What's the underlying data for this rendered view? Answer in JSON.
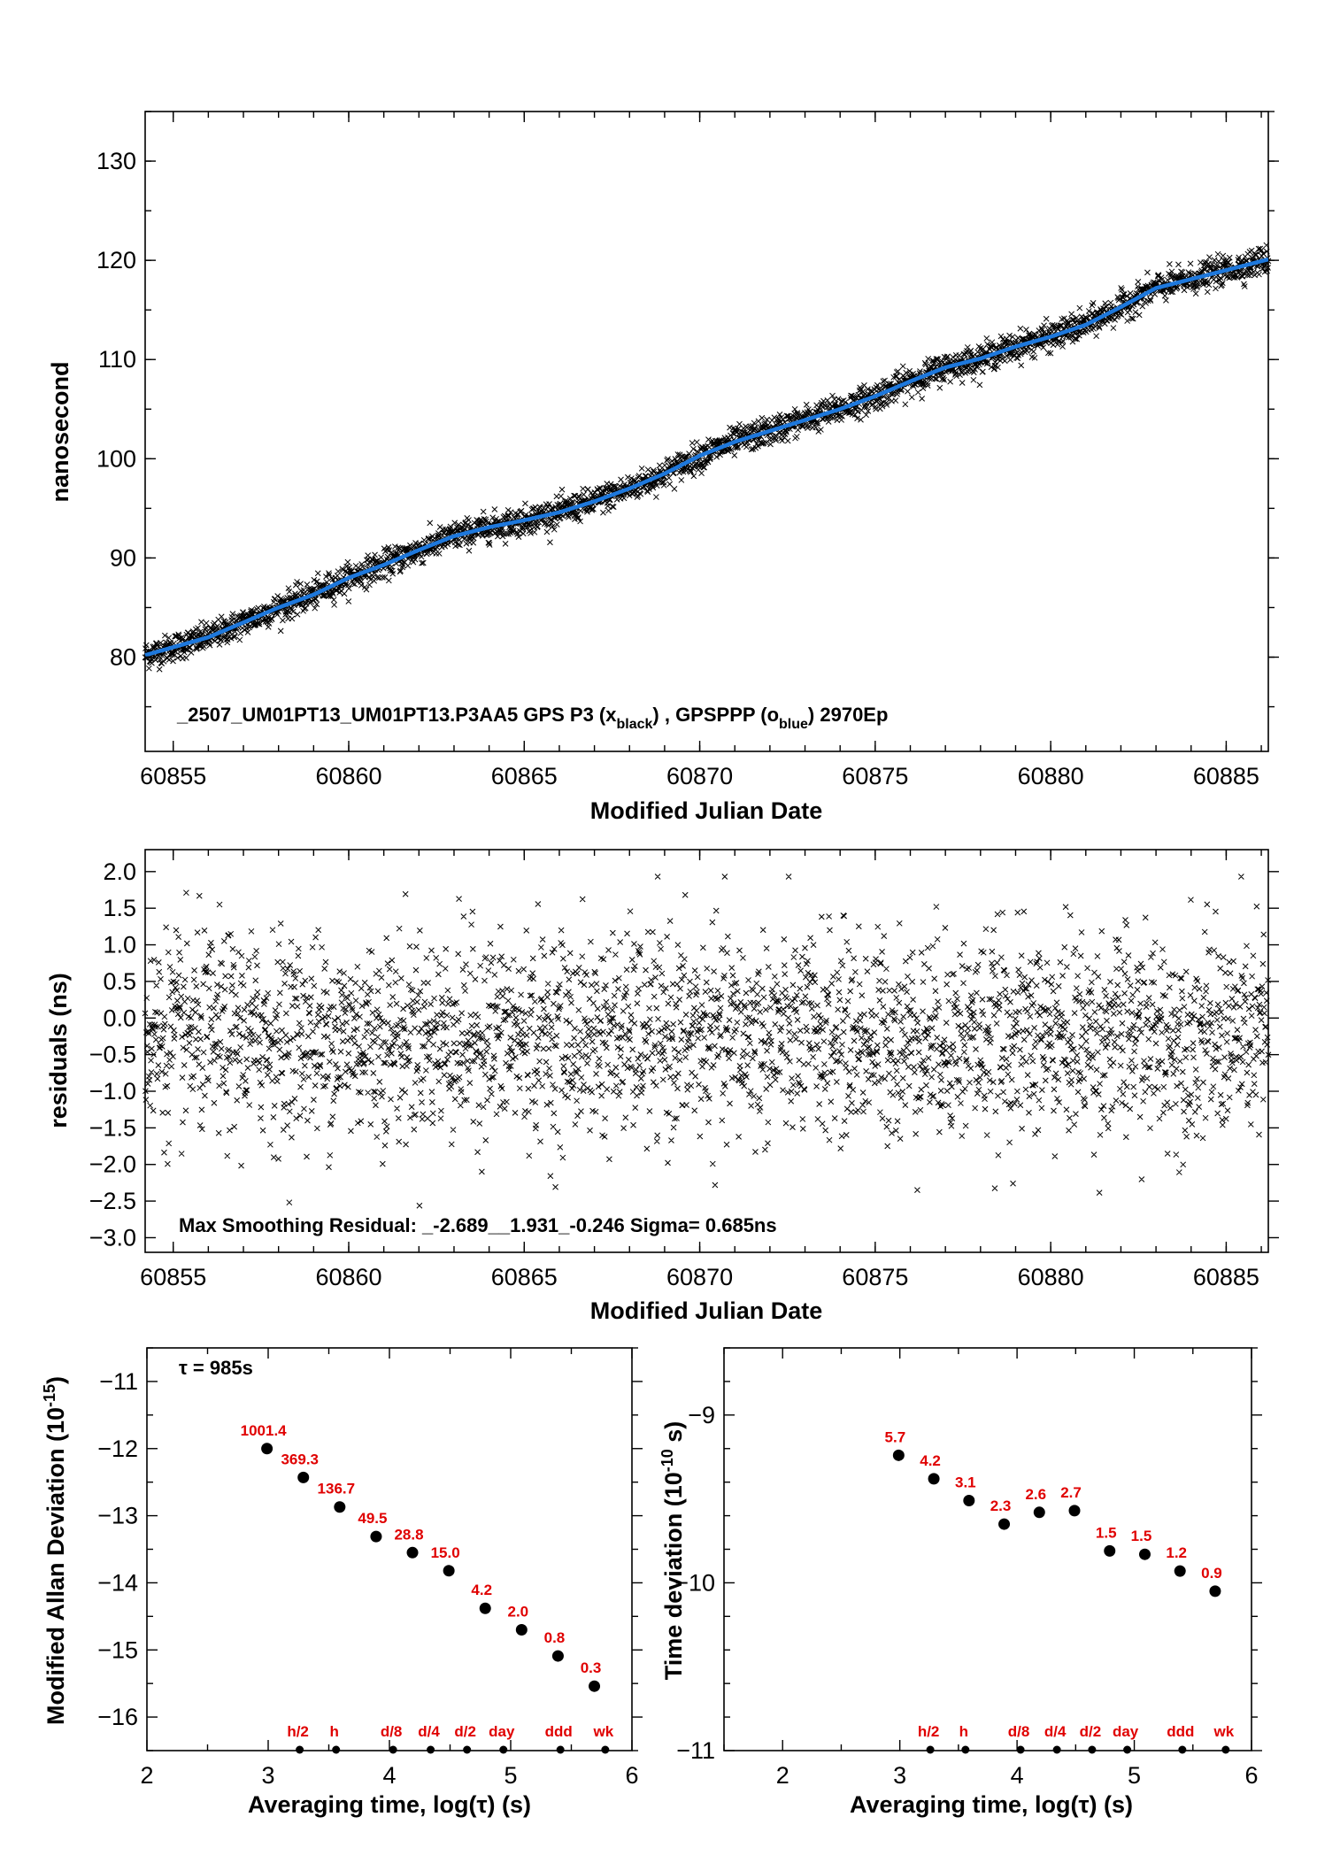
{
  "colors": {
    "fit": "#1e78dc",
    "points": "#000000",
    "labels": "#e00000"
  },
  "chart_data": [
    {
      "type": "scatter",
      "id": "phase",
      "ylabel": "nanosecond",
      "xlabel": "Modified Julian Date",
      "xlim": [
        60854.2,
        60886.2
      ],
      "ylim": [
        70.5,
        135
      ],
      "xticks": [
        60855,
        60860,
        60865,
        60870,
        60875,
        60880,
        60885
      ],
      "yticks": [
        80,
        90,
        100,
        110,
        120,
        130
      ],
      "annotation": {
        "prefix": "_2507_UM01PT13_UM01PT13.P3AA5    GPS P3 (x",
        "sub1": "black",
        "mid": ") ,  GPSPPP (o",
        "sub2": "blue",
        "suffix": ")  2970Ep"
      },
      "series": [
        {
          "marker": "x",
          "scatter_ns": 0.7,
          "fit_x": [
            60854.2,
            60855,
            60856,
            60857,
            60858,
            60859,
            60860,
            60861,
            60862,
            60863,
            60864,
            60865,
            60866,
            60867,
            60868,
            60869,
            60870,
            60871,
            60872,
            60873,
            60874,
            60875,
            60876,
            60877,
            60878,
            60879,
            60880,
            60881,
            60882,
            60883,
            60884,
            60885,
            60886.2
          ],
          "fit_y": [
            80.2,
            81.0,
            82.0,
            83.5,
            85.0,
            86.3,
            88.0,
            89.3,
            90.8,
            92.2,
            93.1,
            93.8,
            94.6,
            95.7,
            97.0,
            98.5,
            100.3,
            101.7,
            102.8,
            103.9,
            105.0,
            106.3,
            107.8,
            109.2,
            110.1,
            111.3,
            112.3,
            113.5,
            115.3,
            117.2,
            118.1,
            119.0,
            120.1
          ]
        }
      ]
    },
    {
      "type": "scatter",
      "id": "residuals",
      "ylabel": "residuals (ns)",
      "xlabel": "Modified Julian Date",
      "xlim": [
        60854.2,
        60886.2
      ],
      "ylim": [
        -3.2,
        2.3
      ],
      "xticks": [
        60855,
        60860,
        60865,
        60870,
        60875,
        60880,
        60885
      ],
      "yticks": [
        2.0,
        1.5,
        1.0,
        0.5,
        0.0,
        -0.5,
        -1.0,
        -1.5,
        -2.0,
        -2.5,
        -3.0
      ],
      "ytick_labels": [
        "2.0",
        "1.5",
        "1.0",
        "0.5",
        "0.0",
        "−0.5",
        "−1.0",
        "−1.5",
        "−2.0",
        "−2.5",
        "−3.0"
      ],
      "annotation": "Max Smoothing Residual: _-2.689__1.931_-0.246  Sigma= 0.685ns",
      "stats": {
        "min": -2.689,
        "max": 1.931,
        "mean": -0.246,
        "sigma": 0.685
      }
    },
    {
      "type": "scatter",
      "id": "mdev",
      "ylabel": "Modified Allan Deviation (10",
      "ylabel_sup": "-15",
      "ylabel_end": ")",
      "xlabel": "Averaging time, log(τ) (s)",
      "xlim": [
        2,
        6
      ],
      "ylim": [
        -16.5,
        -10.5
      ],
      "xticks": [
        2,
        3,
        4,
        5,
        6
      ],
      "yticks": [
        -11,
        -12,
        -13,
        -14,
        -15,
        -16
      ],
      "ytick_labels": [
        "−11",
        "−12",
        "−13",
        "−14",
        "−15",
        "−16"
      ],
      "tau_note": "τ = 985s",
      "x": [
        2.99,
        3.29,
        3.59,
        3.89,
        4.19,
        4.49,
        4.79,
        5.09,
        5.39,
        5.69
      ],
      "y": [
        -12.0,
        -12.43,
        -12.87,
        -13.31,
        -13.55,
        -13.82,
        -14.38,
        -14.7,
        -15.09,
        -15.54
      ],
      "labels": [
        "1001.4",
        "369.3",
        "136.7",
        "49.5",
        "28.8",
        "15.0",
        "4.2",
        "2.0",
        "0.8",
        "0.3"
      ],
      "markers": [
        {
          "label": "h/2",
          "x": 3.26
        },
        {
          "label": "h",
          "x": 3.56
        },
        {
          "label": "d/8",
          "x": 4.03
        },
        {
          "label": "d/4",
          "x": 4.34
        },
        {
          "label": "d/2",
          "x": 4.64
        },
        {
          "label": "day",
          "x": 4.94
        },
        {
          "label": "ddd",
          "x": 5.41
        },
        {
          "label": "wk",
          "x": 5.78
        }
      ]
    },
    {
      "type": "scatter",
      "id": "tdev",
      "ylabel": "Time deviation (10",
      "ylabel_sup": "-10",
      "ylabel_end": " s)",
      "xlabel": "Averaging time, log(τ) (s)",
      "xlim": [
        1.5,
        6
      ],
      "ylim": [
        -11,
        -8.6
      ],
      "xticks": [
        2,
        3,
        4,
        5,
        6
      ],
      "yticks": [
        -9,
        -10,
        -11
      ],
      "ytick_labels": [
        "−9",
        "−10",
        "−11"
      ],
      "x": [
        2.99,
        3.29,
        3.59,
        3.89,
        4.19,
        4.49,
        4.79,
        5.09,
        5.39,
        5.69
      ],
      "y": [
        -9.24,
        -9.38,
        -9.51,
        -9.65,
        -9.58,
        -9.57,
        -9.81,
        -9.83,
        -9.93,
        -10.05
      ],
      "labels": [
        "5.7",
        "4.2",
        "3.1",
        "2.3",
        "2.6",
        "2.7",
        "1.5",
        "1.5",
        "1.2",
        "0.9"
      ],
      "markers": [
        {
          "label": "h/2",
          "x": 3.26
        },
        {
          "label": "h",
          "x": 3.56
        },
        {
          "label": "d/8",
          "x": 4.03
        },
        {
          "label": "d/4",
          "x": 4.34
        },
        {
          "label": "d/2",
          "x": 4.64
        },
        {
          "label": "day",
          "x": 4.94
        },
        {
          "label": "ddd",
          "x": 5.41
        },
        {
          "label": "wk",
          "x": 5.78
        }
      ]
    }
  ]
}
